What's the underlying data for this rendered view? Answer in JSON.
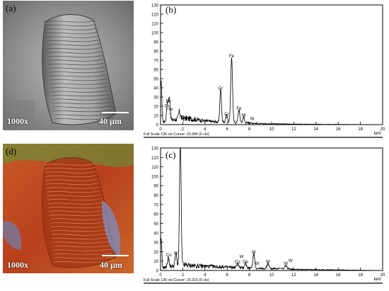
{
  "panels": {
    "a": {
      "label": "(a)",
      "magnification": "1000x",
      "scale": "40 µm"
    },
    "b": {
      "label": "(b)"
    },
    "c": {
      "label": "(c)"
    },
    "d": {
      "label": "(d)",
      "magnification": "1000x",
      "scale": "40 µm"
    }
  },
  "colors": {
    "trace": "#000000",
    "sem_bg": "#8c8c8c",
    "map_red": "#c0421e",
    "map_green": "#4f9a3a",
    "map_blue": "#7a86b8"
  },
  "chart_data": [
    {
      "type": "line",
      "panel": "b",
      "xlim": [
        0,
        20
      ],
      "ylim": [
        0,
        130
      ],
      "xticks": [
        0,
        2,
        4,
        6,
        8,
        10,
        12,
        14,
        16,
        18,
        20
      ],
      "yticks": [
        0,
        10,
        20,
        30,
        40,
        50,
        60,
        70,
        80,
        90,
        100,
        110,
        120,
        130
      ],
      "xunit": "keV",
      "footer": "Full Scale 136 cts Cursor: 20.346 (0 cts)",
      "peaks": [
        {
          "x": 0.05,
          "y": 46,
          "width": 0.06
        },
        {
          "x": 0.6,
          "y": 17,
          "width": 0.07
        },
        {
          "x": 0.75,
          "y": 20,
          "width": 0.07
        },
        {
          "x": 0.85,
          "y": 12,
          "width": 0.06
        },
        {
          "x": 1.7,
          "y": 8,
          "width": 0.08
        },
        {
          "x": 5.41,
          "y": 36,
          "width": 0.07
        },
        {
          "x": 5.95,
          "y": 8,
          "width": 0.07
        },
        {
          "x": 6.4,
          "y": 71,
          "width": 0.08
        },
        {
          "x": 7.06,
          "y": 14,
          "width": 0.08
        },
        {
          "x": 7.48,
          "y": 7,
          "width": 0.07
        }
      ],
      "background": [
        [
          0.2,
          3
        ],
        [
          2,
          7
        ],
        [
          3,
          6
        ],
        [
          4,
          4
        ],
        [
          5,
          3
        ],
        [
          6,
          3
        ],
        [
          7,
          2
        ],
        [
          8,
          2
        ],
        [
          9,
          1
        ],
        [
          10,
          1
        ],
        [
          12,
          0.5
        ],
        [
          20,
          0
        ]
      ],
      "annotations": [
        {
          "text": "Fe",
          "x": 0.7,
          "y": 24
        },
        {
          "text": "Cr",
          "x": 0.55,
          "y": 19
        },
        {
          "text": "Ni",
          "x": 0.9,
          "y": 15
        },
        {
          "text": "Cr",
          "x": 5.41,
          "y": 38
        },
        {
          "text": "Fe",
          "x": 6.4,
          "y": 73
        },
        {
          "text": "Cr",
          "x": 5.95,
          "y": 10
        },
        {
          "text": "Fe",
          "x": 7.06,
          "y": 16
        },
        {
          "text": "Ni",
          "x": 7.48,
          "y": 9
        },
        {
          "text": "Ni",
          "x": 8.26,
          "y": 5
        }
      ]
    },
    {
      "type": "line",
      "panel": "c",
      "xlim": [
        0,
        20
      ],
      "ylim": [
        0,
        130
      ],
      "xticks": [
        0,
        2,
        4,
        6,
        8,
        10,
        12,
        14,
        16,
        18,
        20
      ],
      "yticks": [
        0,
        10,
        20,
        30,
        40,
        50,
        60,
        70,
        80,
        90,
        100,
        110,
        120,
        130
      ],
      "xunit": "keV",
      "footer": "Full Scale 136 cts Cursor: 20.316 (0 cts)",
      "peaks": [
        {
          "x": 0.05,
          "y": 30,
          "width": 0.06
        },
        {
          "x": 0.7,
          "y": 10,
          "width": 0.07
        },
        {
          "x": 1.38,
          "y": 12,
          "width": 0.08
        },
        {
          "x": 1.78,
          "y": 138,
          "width": 0.07
        },
        {
          "x": 6.93,
          "y": 5,
          "width": 0.08
        },
        {
          "x": 7.65,
          "y": 6,
          "width": 0.08
        },
        {
          "x": 8.4,
          "y": 16,
          "width": 0.08
        },
        {
          "x": 9.67,
          "y": 6,
          "width": 0.08
        },
        {
          "x": 11.29,
          "y": 4,
          "width": 0.08
        }
      ],
      "background": [
        [
          0.2,
          3
        ],
        [
          2,
          6
        ],
        [
          3,
          5
        ],
        [
          5,
          4
        ],
        [
          7,
          3
        ],
        [
          9,
          2
        ],
        [
          11,
          2
        ],
        [
          13,
          1
        ],
        [
          20,
          0
        ]
      ],
      "annotations": [
        {
          "text": "Co",
          "x": 0.75,
          "y": 15
        },
        {
          "text": "W",
          "x": 1.38,
          "y": 17
        },
        {
          "text": "Co",
          "x": 6.93,
          "y": 8
        },
        {
          "text": "Co",
          "x": 7.65,
          "y": 8
        },
        {
          "text": "W",
          "x": 8.4,
          "y": 18
        },
        {
          "text": "W",
          "x": 7.3,
          "y": 13
        },
        {
          "text": "W",
          "x": 8.7,
          "y": 6
        },
        {
          "text": "W",
          "x": 9.67,
          "y": 8
        },
        {
          "text": "W",
          "x": 11.29,
          "y": 6
        },
        {
          "text": "W",
          "x": 11.7,
          "y": 9
        }
      ]
    }
  ]
}
